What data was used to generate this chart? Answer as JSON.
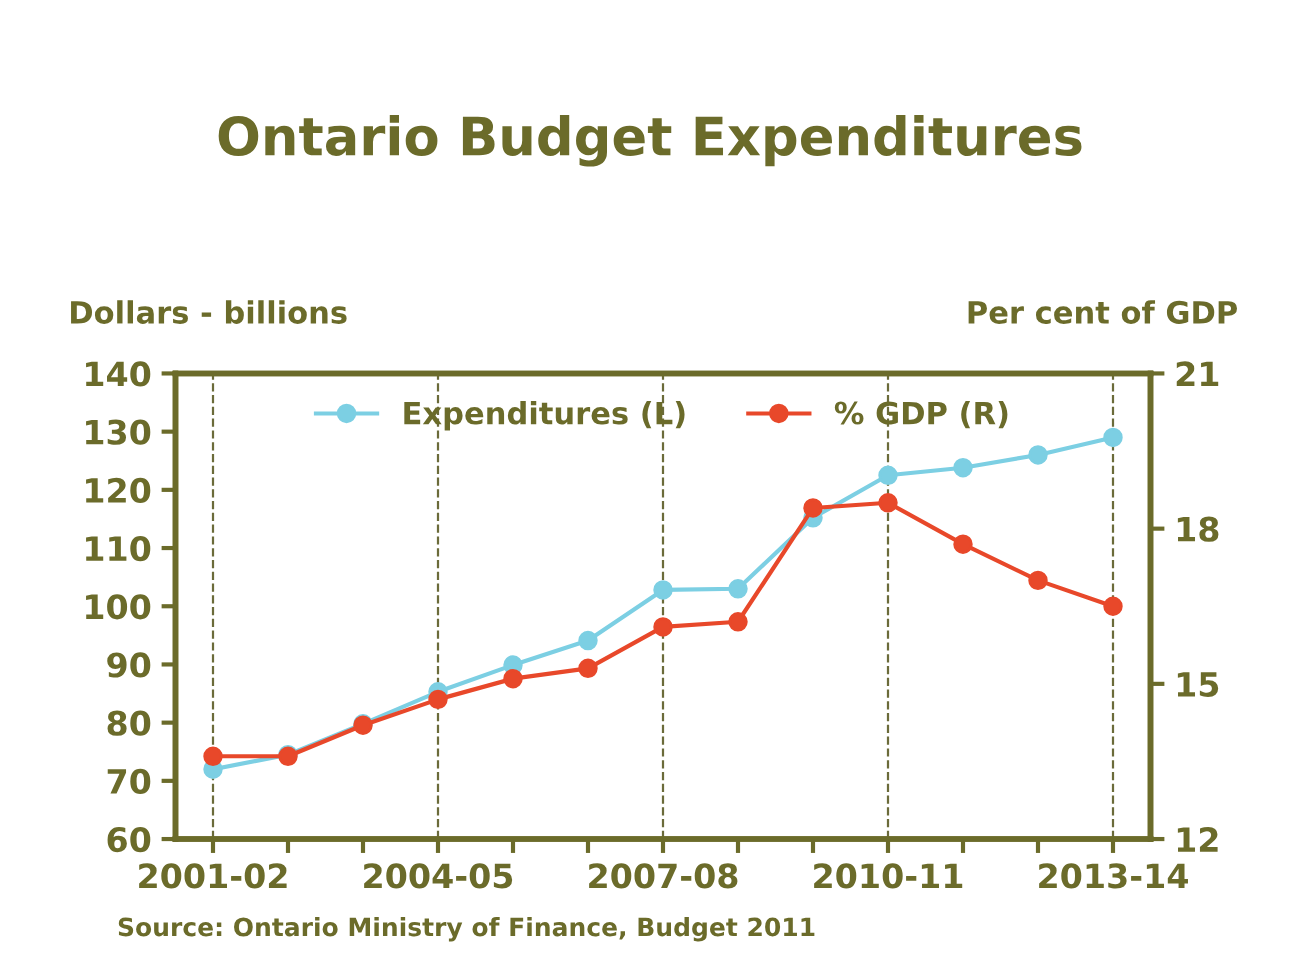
{
  "chart_data": {
    "type": "line",
    "title": "Ontario Budget Expenditures",
    "ylabel": "Dollars - billions",
    "y2label": "Per cent of GDP",
    "categories": [
      "2001-02",
      null,
      null,
      "2004-05",
      null,
      null,
      "2007-08",
      null,
      null,
      "2010-11",
      null,
      null,
      "2013-14"
    ],
    "series": [
      {
        "name": "Expenditures (L)",
        "color": "#7ccfe3",
        "values": [
          72,
          74.5,
          79.8,
          85.3,
          89.9,
          94.1,
          102.8,
          103,
          115.2,
          122.5,
          123.8,
          126,
          129
        ]
      },
      {
        "name": "% GDP (R)",
        "color": "#e8482a",
        "axis": "y2",
        "values": [
          13.6,
          13.6,
          14.2,
          14.7,
          15.1,
          15.3,
          16.1,
          16.2,
          18.4,
          18.5,
          17.7,
          17.0,
          16.5
        ]
      }
    ],
    "ylim": [
      60,
      140
    ],
    "yticks": [
      60,
      70,
      80,
      90,
      100,
      110,
      120,
      130,
      140
    ],
    "y2lim": [
      12,
      21
    ],
    "y2ticks": [
      12,
      15,
      18,
      21
    ],
    "ref_lines": [
      {
        "axis": "x",
        "value": "2001-02",
        "color": "#6b6b3a",
        "line_style": "dashed"
      },
      {
        "axis": "x",
        "value": "2004-05",
        "color": "#6b6b3a",
        "line_style": "dashed"
      },
      {
        "axis": "x",
        "value": "2007-08",
        "color": "#6b6b3a",
        "line_style": "dashed"
      },
      {
        "axis": "x",
        "value": "2010-11",
        "color": "#6b6b3a",
        "line_style": "dashed"
      },
      {
        "axis": "x",
        "value": "2013-14",
        "color": "#6b6b3a",
        "line_style": "dashed"
      }
    ],
    "annotations": [
      "Source: Ontario Ministry of Finance, Budget 2011"
    ],
    "marker": "circle",
    "line_style": "solid",
    "legend": "top",
    "grid": false
  }
}
